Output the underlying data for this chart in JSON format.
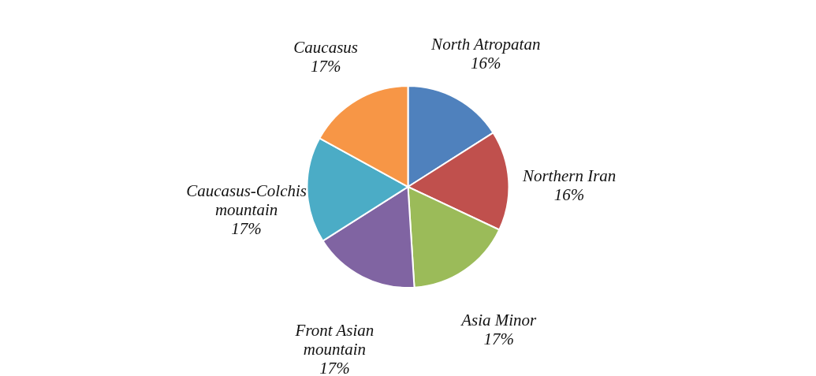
{
  "chart_data": {
    "type": "pie",
    "categories": [
      "North Atropatan",
      "Northern Iran",
      "Asia Minor",
      "Front Asian mountain",
      "Caucasus-Colchis mountain",
      "Caucasus"
    ],
    "values": [
      16,
      16,
      17,
      17,
      17,
      17
    ],
    "value_labels": [
      "16%",
      "16%",
      "17%",
      "17%",
      "17%",
      "17%"
    ],
    "colors": [
      "#4f81bd",
      "#c0504d",
      "#9bbb59",
      "#8064a2",
      "#4bacc6",
      "#f79646"
    ],
    "legend": false
  }
}
